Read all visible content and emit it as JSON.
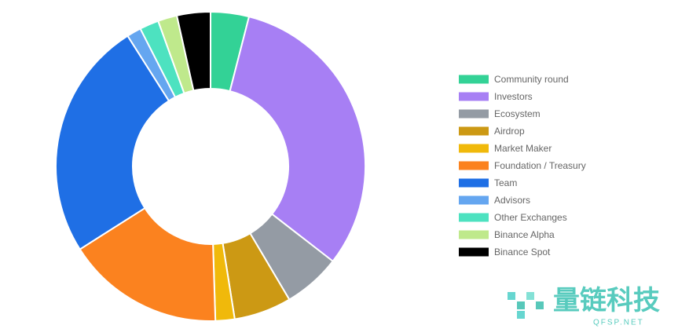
{
  "chart_data": {
    "type": "doughnut",
    "categories": [
      "Community round",
      "Investors",
      "Ecosystem",
      "Airdrop",
      "Market Maker",
      "Foundation / Treasury",
      "Team",
      "Advisors",
      "Other Exchanges",
      "Binance Alpha",
      "Binance Spot"
    ],
    "values": [
      4,
      31.5,
      6,
      6,
      2,
      16.5,
      25,
      1.5,
      2,
      2,
      3.5
    ],
    "colors": [
      "#33d296",
      "#a77ff4",
      "#949ba4",
      "#cc9914",
      "#f0b90b",
      "#fb821f",
      "#1f6fe5",
      "#65a6f0",
      "#4de2c0",
      "#bfe98c",
      "#000000"
    ],
    "legend": "right"
  },
  "watermark": {
    "title": "量链科技",
    "subtitle": "QFSP.NET"
  }
}
